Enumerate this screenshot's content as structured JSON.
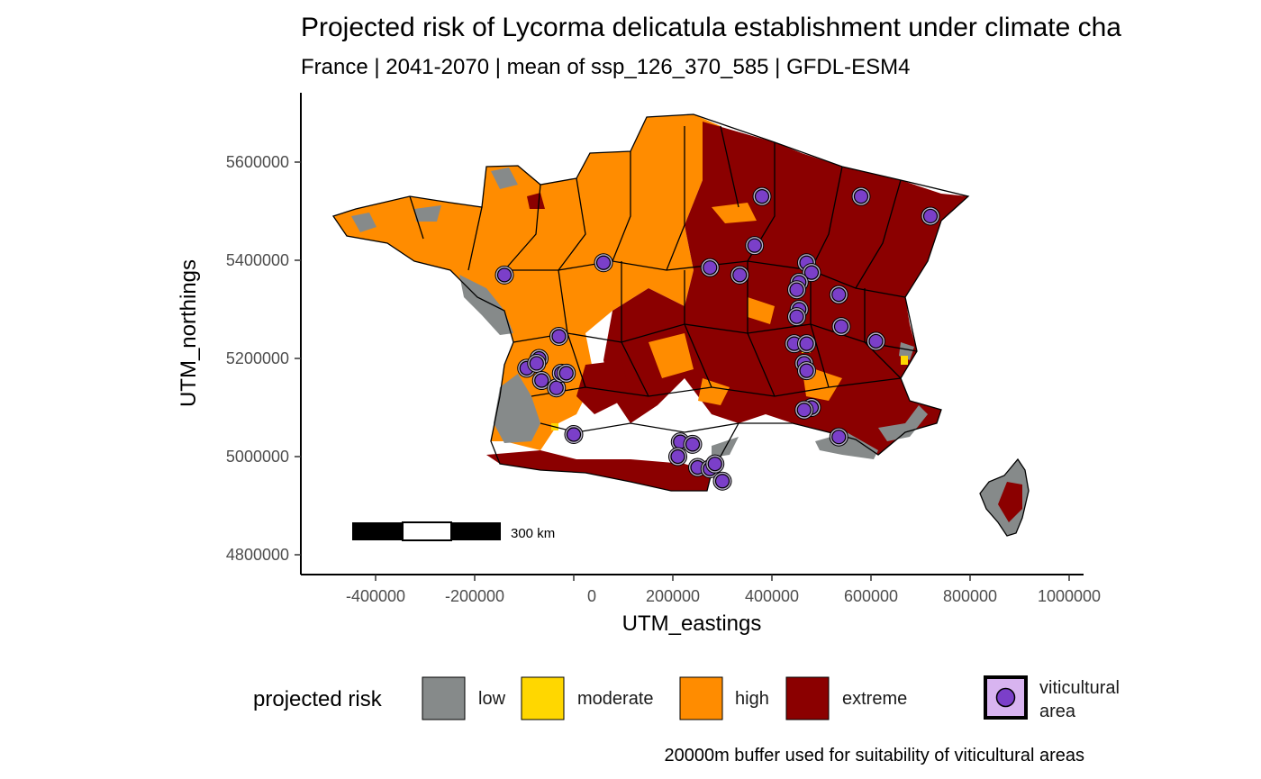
{
  "title": "Projected risk of Lycorma delicatula establishment under climate cha",
  "subtitle": "France | 2041-2070 | mean of ssp_126_370_585 | GFDL-ESM4",
  "axes": {
    "xlabel": "UTM_eastings",
    "ylabel": "UTM_northings",
    "xticks": [
      "-400000",
      "-200000",
      "0",
      "200000",
      "400000",
      "600000",
      "800000",
      "1000000"
    ],
    "xtick_values": [
      -400000,
      -200000,
      0,
      200000,
      400000,
      600000,
      800000,
      1000000
    ],
    "yticks": [
      "4800000",
      "5000000",
      "5200000",
      "5400000",
      "5600000"
    ],
    "ytick_values": [
      4800000,
      5000000,
      5200000,
      5400000,
      5600000
    ]
  },
  "scale_bar": {
    "label": "300 km"
  },
  "legend": {
    "title": "projected risk",
    "items": [
      {
        "label": "low",
        "color": "#868a8a"
      },
      {
        "label": "moderate",
        "color": "#ffd700"
      },
      {
        "label": "high",
        "color": "#ff8c00"
      },
      {
        "label": "extreme",
        "color": "#8b0000"
      }
    ],
    "points_label": "viticultural\narea",
    "points_color": "#7b3fc9"
  },
  "caption": "20000m buffer used for suitability of viticultural areas",
  "viticultural_areas": [
    [
      -140000,
      5370000
    ],
    [
      60000,
      5395000
    ],
    [
      -30000,
      5245000
    ],
    [
      -70000,
      5200000
    ],
    [
      -95000,
      5180000
    ],
    [
      -75000,
      5190000
    ],
    [
      -65000,
      5155000
    ],
    [
      -35000,
      5140000
    ],
    [
      -25000,
      5170000
    ],
    [
      -15000,
      5170000
    ],
    [
      0,
      5045000
    ],
    [
      215000,
      5030000
    ],
    [
      240000,
      5025000
    ],
    [
      210000,
      5000000
    ],
    [
      250000,
      4978000
    ],
    [
      275000,
      4975000
    ],
    [
      285000,
      4985000
    ],
    [
      300000,
      4950000
    ],
    [
      380000,
      5530000
    ],
    [
      365000,
      5430000
    ],
    [
      275000,
      5385000
    ],
    [
      335000,
      5370000
    ],
    [
      470000,
      5395000
    ],
    [
      480000,
      5375000
    ],
    [
      455000,
      5355000
    ],
    [
      450000,
      5340000
    ],
    [
      455000,
      5300000
    ],
    [
      450000,
      5285000
    ],
    [
      535000,
      5330000
    ],
    [
      540000,
      5265000
    ],
    [
      445000,
      5230000
    ],
    [
      470000,
      5230000
    ],
    [
      465000,
      5190000
    ],
    [
      470000,
      5175000
    ],
    [
      480000,
      5100000
    ],
    [
      465000,
      5095000
    ],
    [
      580000,
      5530000
    ],
    [
      720000,
      5490000
    ],
    [
      610000,
      5235000
    ],
    [
      535000,
      5040000
    ]
  ]
}
